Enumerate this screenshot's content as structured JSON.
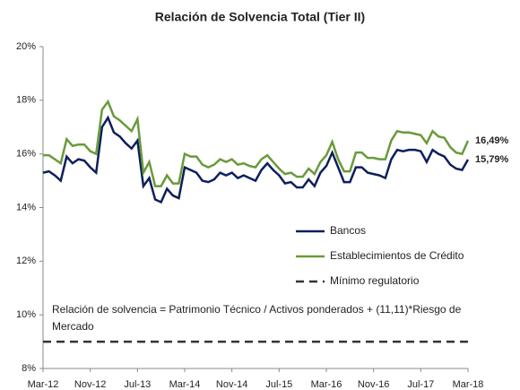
{
  "chart_data": {
    "type": "line",
    "title": "Relación de Solvencia Total (Tier II)",
    "annotation": [
      "Relación de solvencia = Patrimonio Técnico / Activos ponderados + (11,11)*Riesgo de",
      "Mercado"
    ],
    "categories": [
      "Mar-12",
      null,
      null,
      null,
      null,
      null,
      null,
      null,
      "Nov-12",
      null,
      null,
      null,
      null,
      null,
      null,
      null,
      "Jul-13",
      null,
      null,
      null,
      null,
      null,
      null,
      null,
      "Mar-14",
      null,
      null,
      null,
      null,
      null,
      null,
      null,
      "Nov-14",
      null,
      null,
      null,
      null,
      null,
      null,
      null,
      "Jul-15",
      null,
      null,
      null,
      null,
      null,
      null,
      null,
      "Mar-16",
      null,
      null,
      null,
      null,
      null,
      null,
      null,
      "Nov-16",
      null,
      null,
      null,
      null,
      null,
      null,
      null,
      "Jul-17",
      null,
      null,
      null,
      null,
      null,
      null,
      null,
      "Mar-18"
    ],
    "series": [
      {
        "name": "Bancos",
        "color": "#0d1f5c",
        "dash": false,
        "values": [
          15.3,
          15.35,
          15.2,
          15.0,
          15.9,
          15.65,
          15.8,
          15.75,
          15.5,
          15.3,
          17.0,
          17.35,
          16.8,
          16.65,
          16.4,
          16.2,
          16.5,
          14.8,
          15.1,
          14.3,
          14.2,
          14.7,
          14.45,
          14.35,
          15.5,
          15.4,
          15.3,
          15.0,
          14.95,
          15.05,
          15.3,
          15.2,
          15.3,
          15.1,
          15.2,
          15.1,
          15.0,
          15.4,
          15.65,
          15.4,
          15.2,
          14.9,
          14.95,
          14.75,
          14.75,
          15.05,
          14.8,
          15.3,
          15.55,
          16.05,
          15.5,
          14.95,
          14.95,
          15.5,
          15.5,
          15.3,
          15.25,
          15.2,
          15.1,
          15.8,
          16.15,
          16.1,
          16.15,
          16.15,
          16.1,
          15.7,
          16.15,
          16.0,
          15.9,
          15.6,
          15.45,
          15.4,
          15.79
        ],
        "value_labels": [
          null,
          null,
          null,
          null,
          null,
          null,
          null,
          null,
          null,
          null,
          null,
          null,
          null,
          null,
          null,
          null,
          null,
          null,
          null,
          null,
          null,
          null,
          null,
          null,
          null,
          null,
          null,
          null,
          null,
          null,
          null,
          null,
          null,
          null,
          null,
          null,
          null,
          null,
          null,
          null,
          null,
          null,
          null,
          null,
          null,
          null,
          null,
          null,
          null,
          null,
          null,
          null,
          null,
          null,
          null,
          null,
          null,
          null,
          null,
          null,
          null,
          null,
          null,
          null,
          null,
          null,
          null,
          null,
          null,
          null,
          null,
          null,
          "15,79%"
        ]
      },
      {
        "name": "Establecimientos de Crédito",
        "color": "#6a9a3a",
        "dash": false,
        "values": [
          15.95,
          15.95,
          15.8,
          15.65,
          16.55,
          16.3,
          16.35,
          16.35,
          16.1,
          16.0,
          17.65,
          17.95,
          17.4,
          17.25,
          17.05,
          16.85,
          17.3,
          15.3,
          15.7,
          14.8,
          14.8,
          15.2,
          14.9,
          14.9,
          16.0,
          15.9,
          15.9,
          15.6,
          15.5,
          15.6,
          15.8,
          15.7,
          15.8,
          15.6,
          15.65,
          15.55,
          15.5,
          15.8,
          15.95,
          15.7,
          15.45,
          15.25,
          15.3,
          15.15,
          15.15,
          15.45,
          15.25,
          15.7,
          15.95,
          16.45,
          15.8,
          15.35,
          15.35,
          16.05,
          16.05,
          15.85,
          15.85,
          15.8,
          15.8,
          16.5,
          16.85,
          16.8,
          16.8,
          16.75,
          16.7,
          16.4,
          16.85,
          16.65,
          16.6,
          16.25,
          16.05,
          16.0,
          16.49
        ],
        "value_labels": [
          null,
          null,
          null,
          null,
          null,
          null,
          null,
          null,
          null,
          null,
          null,
          null,
          null,
          null,
          null,
          null,
          null,
          null,
          null,
          null,
          null,
          null,
          null,
          null,
          null,
          null,
          null,
          null,
          null,
          null,
          null,
          null,
          null,
          null,
          null,
          null,
          null,
          null,
          null,
          null,
          null,
          null,
          null,
          null,
          null,
          null,
          null,
          null,
          null,
          null,
          null,
          null,
          null,
          null,
          null,
          null,
          null,
          null,
          null,
          null,
          null,
          null,
          null,
          null,
          null,
          null,
          null,
          null,
          null,
          null,
          null,
          null,
          "16,49%"
        ]
      },
      {
        "name": "Mínimo regulatorio",
        "color": "#333333",
        "dash": true,
        "values": [
          9,
          9,
          9,
          9,
          9,
          9,
          9,
          9,
          9,
          9,
          9,
          9,
          9,
          9,
          9,
          9,
          9,
          9,
          9,
          9,
          9,
          9,
          9,
          9,
          9,
          9,
          9,
          9,
          9,
          9,
          9,
          9,
          9,
          9,
          9,
          9,
          9,
          9,
          9,
          9,
          9,
          9,
          9,
          9,
          9,
          9,
          9,
          9,
          9,
          9,
          9,
          9,
          9,
          9,
          9,
          9,
          9,
          9,
          9,
          9,
          9,
          9,
          9,
          9,
          9,
          9,
          9,
          9,
          9,
          9,
          9,
          9,
          9
        ]
      }
    ],
    "ylim": [
      8,
      20
    ],
    "yticks": [
      {
        "value": 8,
        "label": "8%"
      },
      {
        "value": 10,
        "label": "10%"
      },
      {
        "value": 12,
        "label": "12%"
      },
      {
        "value": 14,
        "label": "14%"
      },
      {
        "value": 16,
        "label": "16%"
      },
      {
        "value": 18,
        "label": "18%"
      },
      {
        "value": 20,
        "label": "20%"
      }
    ],
    "grid": false
  }
}
